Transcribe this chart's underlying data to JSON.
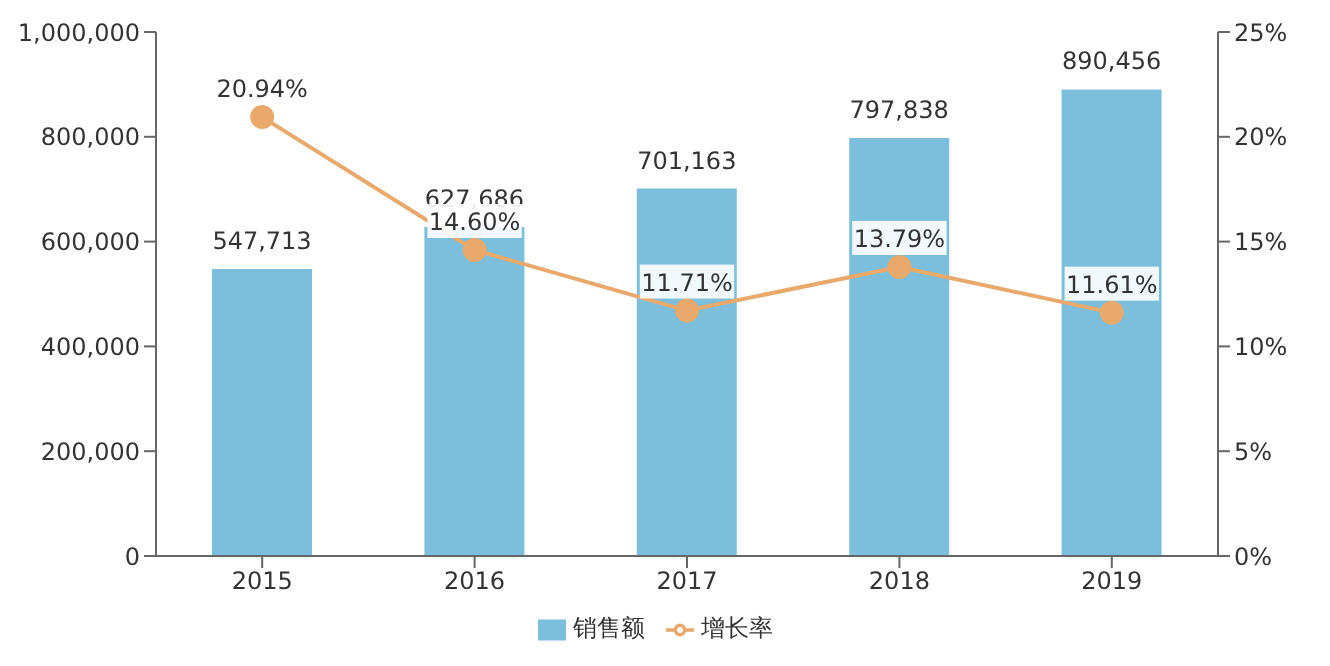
{
  "chart_data": {
    "type": "bar",
    "categories": [
      "2015",
      "2016",
      "2017",
      "2018",
      "2019"
    ],
    "series": [
      {
        "name": "销售额",
        "color": "#7bbfdd",
        "values": [
          547713,
          627686,
          701163,
          797838,
          890456
        ],
        "value_labels": [
          "547,713",
          "627,686",
          "701,163",
          "797,838",
          "890,456"
        ]
      },
      {
        "name": "增长率",
        "type": "line",
        "axis": "y2",
        "color": "#e8a96b",
        "values": [
          20.94,
          14.6,
          11.71,
          13.79,
          11.61
        ],
        "value_labels": [
          "20.94%",
          "14.60%",
          "11.71%",
          "13.79%",
          "11.61%"
        ]
      }
    ],
    "ylim": [
      0,
      1000000
    ],
    "yticks": [
      {
        "value": 0,
        "label": "0"
      },
      {
        "value": 200000,
        "label": "200,000"
      },
      {
        "value": 400000,
        "label": "400,000"
      },
      {
        "value": 600000,
        "label": "600,000"
      },
      {
        "value": 800000,
        "label": "800,000"
      },
      {
        "value": 1000000,
        "label": "1,000,000"
      }
    ],
    "y2lim": [
      0,
      25
    ],
    "y2ticks": [
      {
        "value": 0,
        "label": "0%"
      },
      {
        "value": 5,
        "label": "5%"
      },
      {
        "value": 10,
        "label": "10%"
      },
      {
        "value": 15,
        "label": "15%"
      },
      {
        "value": 20,
        "label": "20%"
      },
      {
        "value": 25,
        "label": "25%"
      }
    ],
    "legend": "bottom",
    "marker": "circle"
  }
}
